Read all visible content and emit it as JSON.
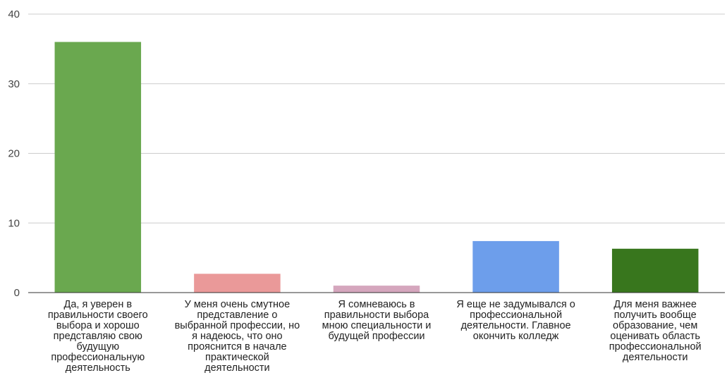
{
  "chart_data": {
    "type": "bar",
    "title": "",
    "xlabel": "",
    "ylabel": "",
    "ylim": [
      0,
      40
    ],
    "yticks": [
      0,
      10,
      20,
      30,
      40
    ],
    "grid": true,
    "legend": "none",
    "categories": [
      "Да, я уверен в правильности своего выбора и хорошо представляю свою будущую профессиональную деятельность",
      "У меня очень смутное представление о выбранной профессии, но я надеюсь, что оно прояснится в начале практической деятельности",
      "Я сомневаюсь в правильности выбора мною специальности и будущей профессии",
      "Я еще не задумывался о профессиональной деятельности. Главное окончить колледж",
      "Для меня важнее получить вообще образование, чем оценивать область профессиональной деятельности"
    ],
    "values": [
      36,
      2.7,
      1,
      7.4,
      6.3
    ],
    "colors": [
      "#6aa84f",
      "#ea9999",
      "#d5a6bd",
      "#6d9eeb",
      "#38761d"
    ]
  }
}
